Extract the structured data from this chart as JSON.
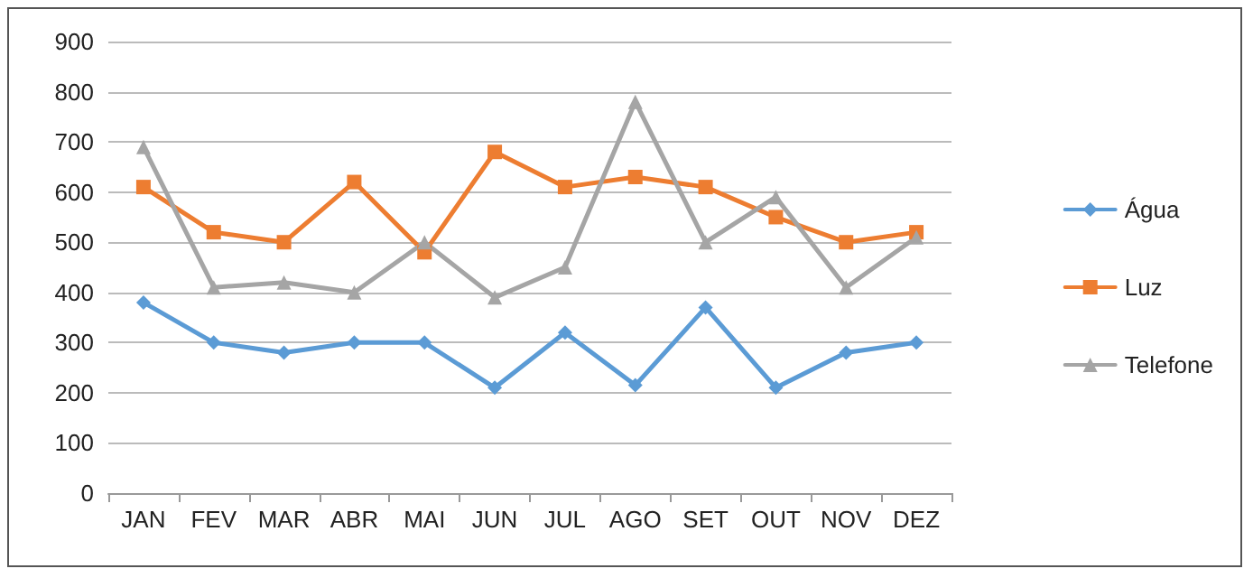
{
  "chart_data": {
    "type": "line",
    "categories": [
      "JAN",
      "FEV",
      "MAR",
      "ABR",
      "MAI",
      "JUN",
      "JUL",
      "AGO",
      "SET",
      "OUT",
      "NOV",
      "DEZ"
    ],
    "series": [
      {
        "name": "Água",
        "color": "#5b9bd5",
        "marker": "diamond",
        "values": [
          380,
          300,
          280,
          300,
          300,
          210,
          320,
          215,
          370,
          210,
          280,
          300
        ]
      },
      {
        "name": "Luz",
        "color": "#ed7d31",
        "marker": "square",
        "values": [
          610,
          520,
          500,
          620,
          480,
          680,
          610,
          630,
          610,
          550,
          500,
          520
        ]
      },
      {
        "name": "Telefone",
        "color": "#a5a5a5",
        "marker": "triangle",
        "values": [
          690,
          410,
          420,
          400,
          500,
          390,
          450,
          780,
          500,
          590,
          410,
          510
        ]
      }
    ],
    "ylim": [
      0,
      900
    ],
    "yticks": [
      0,
      100,
      200,
      300,
      400,
      500,
      600,
      700,
      800,
      900
    ],
    "grid": "y",
    "legend": "right",
    "line_style": "solid"
  }
}
